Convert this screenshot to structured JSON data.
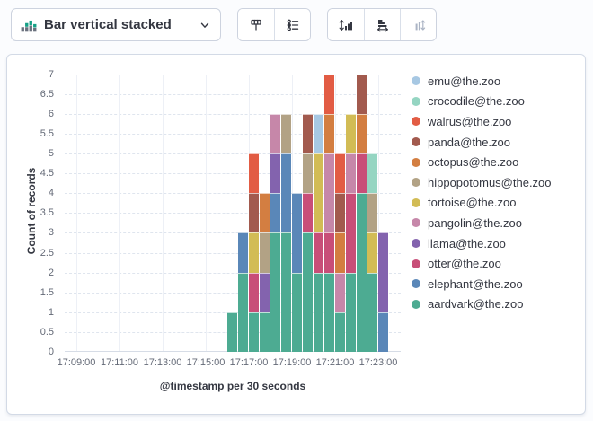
{
  "toolbar": {
    "chart_type_label": "Bar vertical stacked",
    "chart_type_icon": "stacked-bar-chart-icon",
    "dropdown_icon": "chevron-down-icon",
    "buttons": [
      {
        "icon": "brush-icon",
        "disabled": false
      },
      {
        "icon": "settings-list-icon",
        "disabled": false
      },
      {
        "icon": "sort-vertical-bars-icon",
        "disabled": false
      },
      {
        "icon": "sort-horizontal-bars-icon",
        "disabled": false
      },
      {
        "icon": "swap-axes-icon",
        "disabled": true
      }
    ]
  },
  "chart": {
    "y_axis": {
      "title": "Count of records",
      "min": 0,
      "max": 7,
      "tick_step": 0.5,
      "tick_labels": [
        "0",
        "0.5",
        "1",
        "1.5",
        "2",
        "2.5",
        "3",
        "3.5",
        "4",
        "4.5",
        "5",
        "5.5",
        "6",
        "6.5",
        "7"
      ]
    },
    "x_axis": {
      "title": "@timestamp per 30 seconds",
      "tick_labels": [
        "17:09:00",
        "17:11:00",
        "17:13:00",
        "17:15:00",
        "17:17:00",
        "17:19:00",
        "17:21:00",
        "17:23:00"
      ]
    },
    "legend_position": "right"
  },
  "chart_data": {
    "type": "bar",
    "stacked": true,
    "title": "",
    "xlabel": "@timestamp per 30 seconds",
    "ylabel": "Count of records",
    "ylim": [
      0,
      7
    ],
    "x_bucket_seconds": 30,
    "grid": true,
    "x": [
      "17:16:00",
      "17:16:30",
      "17:17:00",
      "17:17:30",
      "17:18:00",
      "17:18:30",
      "17:19:00",
      "17:19:30",
      "17:20:00",
      "17:20:30",
      "17:21:00",
      "17:21:30",
      "17:22:00",
      "17:22:30",
      "17:23:00"
    ],
    "series": [
      {
        "name": "aardvark@the.zoo",
        "color": "#4DAB92",
        "values": [
          1,
          2,
          1,
          1,
          3,
          3,
          2,
          3,
          2,
          2,
          1,
          2,
          4,
          2,
          0
        ]
      },
      {
        "name": "elephant@the.zoo",
        "color": "#5A87B8",
        "values": [
          0,
          1,
          0,
          0,
          1,
          2,
          2,
          0,
          0,
          0,
          0,
          0,
          0,
          0,
          1
        ]
      },
      {
        "name": "otter@the.zoo",
        "color": "#C84E78",
        "values": [
          0,
          0,
          1,
          0,
          0,
          0,
          0,
          1,
          1,
          1,
          0,
          2,
          1,
          0,
          0
        ]
      },
      {
        "name": "llama@the.zoo",
        "color": "#8363AE",
        "values": [
          0,
          0,
          0,
          1,
          1,
          0,
          0,
          0,
          0,
          0,
          0,
          0,
          0,
          0,
          2
        ]
      },
      {
        "name": "pangolin@the.zoo",
        "color": "#C687A9",
        "values": [
          0,
          0,
          0,
          0,
          1,
          0,
          0,
          0,
          0,
          2,
          1,
          1,
          0,
          0,
          0
        ]
      },
      {
        "name": "tortoise@the.zoo",
        "color": "#D2BC55",
        "values": [
          0,
          0,
          1,
          0,
          0,
          0,
          0,
          0,
          2,
          0,
          0,
          1,
          0,
          1,
          0
        ]
      },
      {
        "name": "hippopotomus@the.zoo",
        "color": "#B2A285",
        "values": [
          0,
          0,
          0,
          1,
          0,
          1,
          0,
          1,
          0,
          0,
          0,
          0,
          0,
          1,
          0
        ]
      },
      {
        "name": "octopus@the.zoo",
        "color": "#D37E41",
        "values": [
          0,
          0,
          0,
          1,
          0,
          0,
          0,
          0,
          0,
          1,
          1,
          0,
          1,
          0,
          0
        ]
      },
      {
        "name": "panda@the.zoo",
        "color": "#A25A4E",
        "values": [
          0,
          0,
          1,
          0,
          0,
          0,
          0,
          1,
          0,
          0,
          1,
          0,
          1,
          0,
          0
        ]
      },
      {
        "name": "walrus@the.zoo",
        "color": "#E25C44",
        "values": [
          0,
          0,
          1,
          0,
          0,
          0,
          0,
          0,
          0,
          1,
          1,
          0,
          0,
          0,
          0
        ]
      },
      {
        "name": "crocodile@the.zoo",
        "color": "#95D5C2",
        "values": [
          0,
          0,
          0,
          0,
          0,
          0,
          0,
          0,
          0,
          0,
          0,
          0,
          0,
          1,
          0
        ]
      },
      {
        "name": "emu@the.zoo",
        "color": "#A7C8E3",
        "values": [
          0,
          0,
          0,
          0,
          0,
          0,
          0,
          0,
          1,
          0,
          0,
          0,
          0,
          0,
          0
        ]
      }
    ]
  }
}
